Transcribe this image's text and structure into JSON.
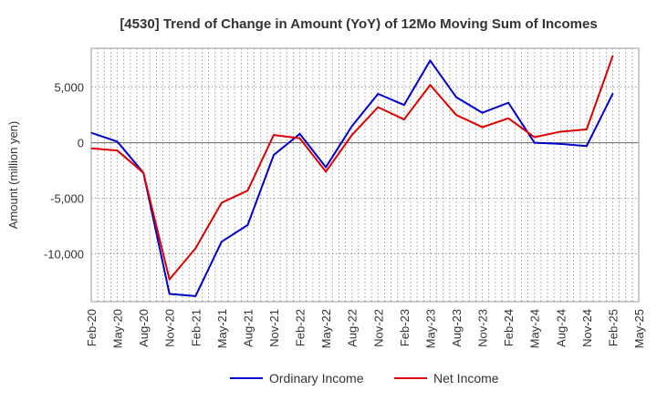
{
  "chart_data": {
    "type": "line",
    "title": "[4530]  Trend of Change in Amount (YoY) of 12Mo Moving Sum of Incomes",
    "xlabel": "",
    "ylabel": "Amount (million yen)",
    "categories": [
      "Feb-20",
      "May-20",
      "Aug-20",
      "Nov-20",
      "Feb-21",
      "May-21",
      "Aug-21",
      "Nov-21",
      "Feb-22",
      "May-22",
      "Aug-22",
      "Nov-22",
      "Feb-23",
      "May-23",
      "Aug-23",
      "Nov-23",
      "Feb-24",
      "May-24",
      "Aug-24",
      "Nov-24",
      "Feb-25",
      "May-25"
    ],
    "ylim": [
      -14300,
      8500
    ],
    "yticks": [
      5000,
      0,
      -5000,
      -10000
    ],
    "ytick_labels": [
      "5,000",
      "0",
      "-5,000",
      "-10,000"
    ],
    "grid": true,
    "legend_position": "bottom-center",
    "series": [
      {
        "name": "Ordinary Income",
        "color": "#0000cc",
        "values": [
          900,
          100,
          -2700,
          -13600,
          -13800,
          -8900,
          -7400,
          -1100,
          800,
          -2200,
          1500,
          4400,
          3400,
          7400,
          4100,
          2700,
          3600,
          0,
          -100,
          -300,
          4400,
          null
        ]
      },
      {
        "name": "Net Income",
        "color": "#dd0000",
        "values": [
          -500,
          -700,
          -2700,
          -12300,
          -9500,
          -5400,
          -4300,
          700,
          400,
          -2600,
          700,
          3200,
          2100,
          5200,
          2500,
          1400,
          2200,
          500,
          1000,
          1200,
          7800,
          null
        ]
      }
    ]
  }
}
